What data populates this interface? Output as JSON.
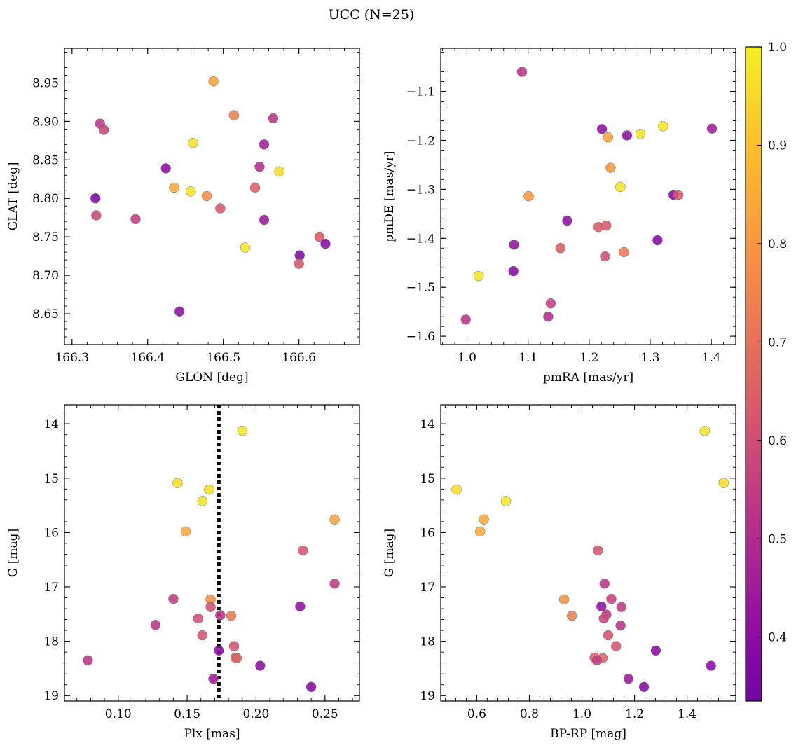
{
  "figure": {
    "title": "UCC (N=25)"
  },
  "chart_data": [
    {
      "type": "scatter",
      "xlabel": "GLON [deg]",
      "ylabel": "GLAT [deg]",
      "xlim": [
        166.29,
        166.68
      ],
      "ylim": [
        8.61,
        8.995
      ],
      "y_inverted": false,
      "xticks": [
        166.3,
        166.4,
        166.5,
        166.6
      ],
      "xtick_labels": [
        "166.3",
        "166.4",
        "166.5",
        "166.6"
      ],
      "yticks": [
        8.65,
        8.7,
        8.75,
        8.8,
        8.85,
        8.9,
        8.95
      ],
      "ytick_labels": [
        "8.65",
        "8.70",
        "8.75",
        "8.80",
        "8.85",
        "8.90",
        "8.95"
      ],
      "points": [
        {
          "x": 166.487,
          "y": 8.952,
          "c": 0.83
        },
        {
          "x": 166.514,
          "y": 8.908,
          "c": 0.74
        },
        {
          "x": 166.566,
          "y": 8.904,
          "c": 0.53
        },
        {
          "x": 166.337,
          "y": 8.897,
          "c": 0.53
        },
        {
          "x": 166.342,
          "y": 8.889,
          "c": 0.58
        },
        {
          "x": 166.46,
          "y": 8.872,
          "c": 0.97
        },
        {
          "x": 166.554,
          "y": 8.87,
          "c": 0.45
        },
        {
          "x": 166.548,
          "y": 8.841,
          "c": 0.5
        },
        {
          "x": 166.424,
          "y": 8.839,
          "c": 0.4
        },
        {
          "x": 166.574,
          "y": 8.835,
          "c": 0.96
        },
        {
          "x": 166.435,
          "y": 8.814,
          "c": 0.84
        },
        {
          "x": 166.542,
          "y": 8.814,
          "c": 0.65
        },
        {
          "x": 166.457,
          "y": 8.809,
          "c": 0.98
        },
        {
          "x": 166.478,
          "y": 8.803,
          "c": 0.78
        },
        {
          "x": 166.331,
          "y": 8.8,
          "c": 0.36
        },
        {
          "x": 166.496,
          "y": 8.787,
          "c": 0.62
        },
        {
          "x": 166.332,
          "y": 8.778,
          "c": 0.57
        },
        {
          "x": 166.384,
          "y": 8.773,
          "c": 0.55
        },
        {
          "x": 166.554,
          "y": 8.772,
          "c": 0.44
        },
        {
          "x": 166.627,
          "y": 8.75,
          "c": 0.64
        },
        {
          "x": 166.635,
          "y": 8.741,
          "c": 0.38
        },
        {
          "x": 166.529,
          "y": 8.736,
          "c": 0.98
        },
        {
          "x": 166.601,
          "y": 8.726,
          "c": 0.37
        },
        {
          "x": 166.6,
          "y": 8.715,
          "c": 0.62
        },
        {
          "x": 166.442,
          "y": 8.653,
          "c": 0.4
        }
      ]
    },
    {
      "type": "scatter",
      "xlabel": "pmRA [mas/yr]",
      "ylabel": "pmDE [mas/yr]",
      "xlim": [
        0.957,
        1.44
      ],
      "ylim": [
        -1.617,
        -1.012
      ],
      "y_inverted": false,
      "xticks": [
        1.0,
        1.1,
        1.2,
        1.3,
        1.4
      ],
      "xtick_labels": [
        "1.0",
        "1.1",
        "1.2",
        "1.3",
        "1.4"
      ],
      "yticks": [
        -1.6,
        -1.5,
        -1.4,
        -1.3,
        -1.2,
        -1.1
      ],
      "ytick_labels": [
        "−1.6",
        "−1.5",
        "−1.4",
        "−1.3",
        "−1.2",
        "−1.1"
      ],
      "points": [
        {
          "x": 1.09,
          "y": -1.06,
          "c": 0.53
        },
        {
          "x": 1.221,
          "y": -1.177,
          "c": 0.4
        },
        {
          "x": 1.262,
          "y": -1.19,
          "c": 0.41
        },
        {
          "x": 1.231,
          "y": -1.194,
          "c": 0.83
        },
        {
          "x": 1.284,
          "y": -1.187,
          "c": 0.97
        },
        {
          "x": 1.321,
          "y": -1.171,
          "c": 0.98
        },
        {
          "x": 1.401,
          "y": -1.176,
          "c": 0.45
        },
        {
          "x": 1.235,
          "y": -1.256,
          "c": 0.81
        },
        {
          "x": 1.251,
          "y": -1.295,
          "c": 0.98
        },
        {
          "x": 1.101,
          "y": -1.314,
          "c": 0.8
        },
        {
          "x": 1.338,
          "y": -1.311,
          "c": 0.38
        },
        {
          "x": 1.346,
          "y": -1.311,
          "c": 0.63
        },
        {
          "x": 1.164,
          "y": -1.364,
          "c": 0.41
        },
        {
          "x": 1.215,
          "y": -1.377,
          "c": 0.63
        },
        {
          "x": 1.228,
          "y": -1.374,
          "c": 0.63
        },
        {
          "x": 1.312,
          "y": -1.404,
          "c": 0.38
        },
        {
          "x": 1.077,
          "y": -1.413,
          "c": 0.42
        },
        {
          "x": 1.153,
          "y": -1.42,
          "c": 0.64
        },
        {
          "x": 1.257,
          "y": -1.428,
          "c": 0.72
        },
        {
          "x": 1.226,
          "y": -1.437,
          "c": 0.6
        },
        {
          "x": 1.076,
          "y": -1.467,
          "c": 0.39
        },
        {
          "x": 1.019,
          "y": -1.477,
          "c": 0.98
        },
        {
          "x": 1.137,
          "y": -1.533,
          "c": 0.55
        },
        {
          "x": 1.133,
          "y": -1.56,
          "c": 0.5
        },
        {
          "x": 0.998,
          "y": -1.566,
          "c": 0.52
        }
      ]
    },
    {
      "type": "scatter",
      "xlabel": "Plx [mas]",
      "ylabel": "G [mag]",
      "xlim": [
        0.061,
        0.275
      ],
      "ylim": [
        19.1,
        13.65
      ],
      "y_inverted": true,
      "xticks": [
        0.1,
        0.15,
        0.2,
        0.25
      ],
      "xtick_labels": [
        "0.10",
        "0.15",
        "0.20",
        "0.25"
      ],
      "yticks": [
        14,
        15,
        16,
        17,
        18,
        19
      ],
      "ytick_labels": [
        "14",
        "15",
        "16",
        "17",
        "18",
        "19"
      ],
      "vline": {
        "x": 0.173
      },
      "points": [
        {
          "x": 0.19,
          "y": 14.13,
          "c": 0.98
        },
        {
          "x": 0.143,
          "y": 15.09,
          "c": 0.97
        },
        {
          "x": 0.166,
          "y": 15.21,
          "c": 0.96
        },
        {
          "x": 0.161,
          "y": 15.42,
          "c": 0.98
        },
        {
          "x": 0.257,
          "y": 15.76,
          "c": 0.84
        },
        {
          "x": 0.149,
          "y": 15.98,
          "c": 0.85
        },
        {
          "x": 0.234,
          "y": 16.33,
          "c": 0.62
        },
        {
          "x": 0.257,
          "y": 16.94,
          "c": 0.54
        },
        {
          "x": 0.14,
          "y": 17.22,
          "c": 0.55
        },
        {
          "x": 0.167,
          "y": 17.23,
          "c": 0.79
        },
        {
          "x": 0.232,
          "y": 17.36,
          "c": 0.41
        },
        {
          "x": 0.167,
          "y": 17.37,
          "c": 0.6
        },
        {
          "x": 0.174,
          "y": 17.52,
          "c": 0.52
        },
        {
          "x": 0.182,
          "y": 17.53,
          "c": 0.72
        },
        {
          "x": 0.158,
          "y": 17.58,
          "c": 0.6
        },
        {
          "x": 0.127,
          "y": 17.7,
          "c": 0.53
        },
        {
          "x": 0.161,
          "y": 17.89,
          "c": 0.62
        },
        {
          "x": 0.184,
          "y": 18.09,
          "c": 0.62
        },
        {
          "x": 0.173,
          "y": 18.17,
          "c": 0.4
        },
        {
          "x": 0.185,
          "y": 18.3,
          "c": 0.64
        },
        {
          "x": 0.186,
          "y": 18.31,
          "c": 0.66
        },
        {
          "x": 0.078,
          "y": 18.35,
          "c": 0.52
        },
        {
          "x": 0.203,
          "y": 18.45,
          "c": 0.4
        },
        {
          "x": 0.169,
          "y": 18.69,
          "c": 0.45
        },
        {
          "x": 0.24,
          "y": 18.84,
          "c": 0.38
        }
      ]
    },
    {
      "type": "scatter",
      "xlabel": "BP-RP [mag]",
      "ylabel": "G [mag]",
      "xlim": [
        0.463,
        1.585
      ],
      "ylim": [
        19.1,
        13.65
      ],
      "y_inverted": true,
      "xticks": [
        0.6,
        0.8,
        1.0,
        1.2,
        1.4
      ],
      "xtick_labels": [
        "0.6",
        "0.8",
        "1.0",
        "1.2",
        "1.4"
      ],
      "yticks": [
        14,
        15,
        16,
        17,
        18,
        19
      ],
      "ytick_labels": [
        "14",
        "15",
        "16",
        "17",
        "18",
        "19"
      ],
      "points": [
        {
          "x": 1.467,
          "y": 14.13,
          "c": 0.98
        },
        {
          "x": 1.539,
          "y": 15.09,
          "c": 0.97
        },
        {
          "x": 0.523,
          "y": 15.21,
          "c": 0.96
        },
        {
          "x": 0.711,
          "y": 15.42,
          "c": 0.98
        },
        {
          "x": 0.627,
          "y": 15.76,
          "c": 0.84
        },
        {
          "x": 0.613,
          "y": 15.98,
          "c": 0.85
        },
        {
          "x": 1.061,
          "y": 16.33,
          "c": 0.62
        },
        {
          "x": 1.086,
          "y": 16.94,
          "c": 0.52
        },
        {
          "x": 0.932,
          "y": 17.23,
          "c": 0.79
        },
        {
          "x": 1.112,
          "y": 17.22,
          "c": 0.56
        },
        {
          "x": 1.074,
          "y": 17.36,
          "c": 0.41
        },
        {
          "x": 1.15,
          "y": 17.37,
          "c": 0.54
        },
        {
          "x": 1.093,
          "y": 17.51,
          "c": 0.53
        },
        {
          "x": 0.962,
          "y": 17.53,
          "c": 0.74
        },
        {
          "x": 1.083,
          "y": 17.58,
          "c": 0.58
        },
        {
          "x": 1.147,
          "y": 17.71,
          "c": 0.52
        },
        {
          "x": 1.1,
          "y": 17.89,
          "c": 0.61
        },
        {
          "x": 1.13,
          "y": 18.09,
          "c": 0.62
        },
        {
          "x": 1.281,
          "y": 18.17,
          "c": 0.39
        },
        {
          "x": 1.048,
          "y": 18.3,
          "c": 0.64
        },
        {
          "x": 1.079,
          "y": 18.31,
          "c": 0.66
        },
        {
          "x": 1.057,
          "y": 18.35,
          "c": 0.55
        },
        {
          "x": 1.491,
          "y": 18.45,
          "c": 0.4
        },
        {
          "x": 1.177,
          "y": 18.69,
          "c": 0.44
        },
        {
          "x": 1.236,
          "y": 18.84,
          "c": 0.38
        }
      ]
    }
  ],
  "colorbar": {
    "colormap": "plasma",
    "vmin": 0.335,
    "vmax": 1.0,
    "ticks": [
      0.4,
      0.5,
      0.6,
      0.7,
      0.8,
      0.9,
      1.0
    ],
    "tick_labels": [
      "0.4",
      "0.5",
      "0.6",
      "0.7",
      "0.8",
      "0.9",
      "1.0"
    ]
  }
}
